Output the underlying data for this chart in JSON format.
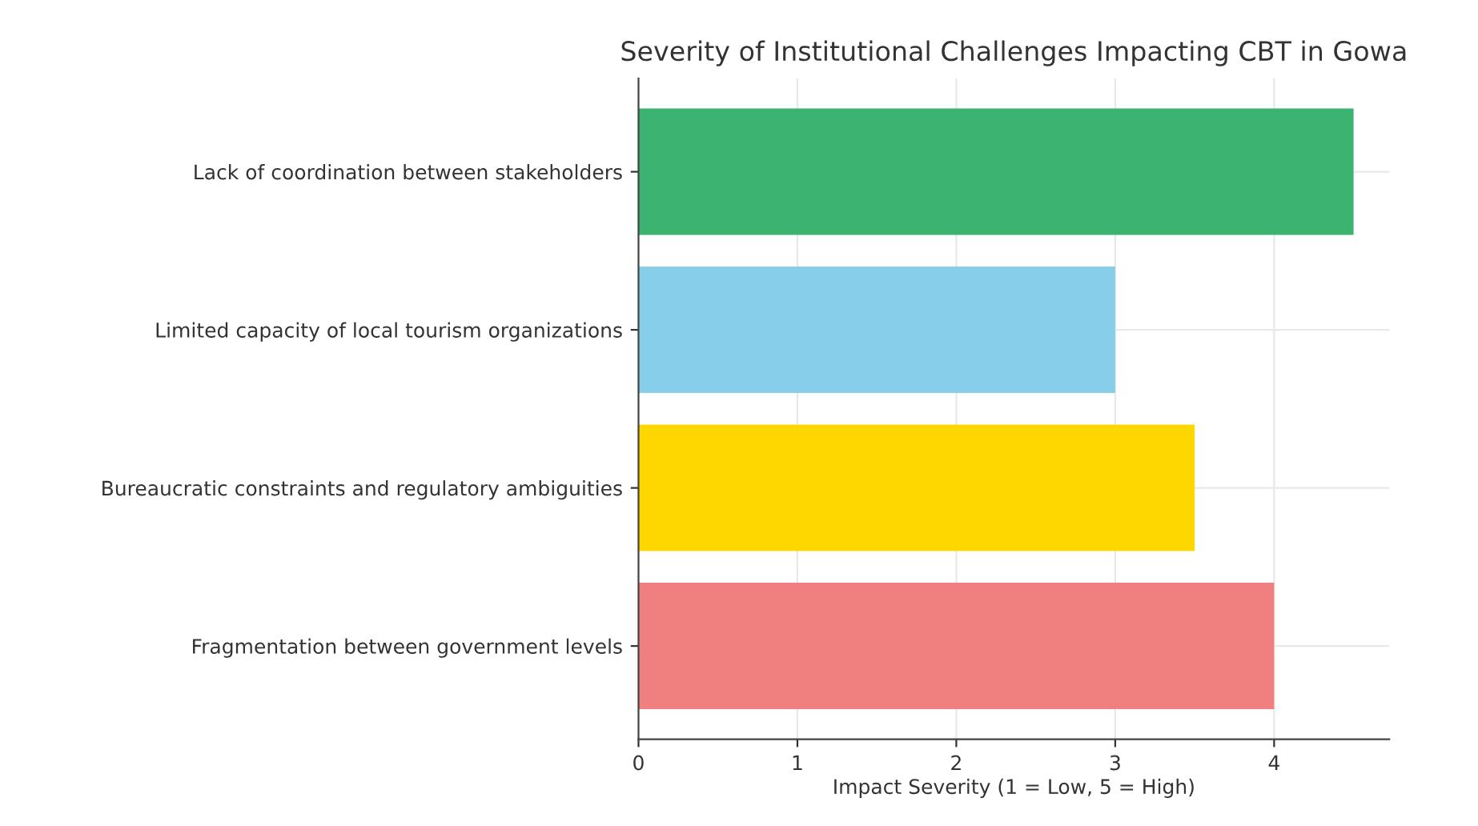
{
  "chart_data": {
    "type": "bar",
    "orientation": "horizontal",
    "title": "Severity of Institutional Challenges Impacting CBT in Gowa",
    "xlabel": "Impact Severity (1 = Low, 5 = High)",
    "categories": [
      "Lack of coordination between stakeholders",
      "Limited capacity of local tourism organizations",
      "Bureaucratic constraints and regulatory ambiguities",
      "Fragmentation between government levels"
    ],
    "values": [
      4.5,
      3.0,
      3.5,
      4.0
    ],
    "colors": [
      "#3cb371",
      "#87ceeb",
      "#ffd700",
      "#f08080"
    ],
    "xlim": [
      0,
      4.725
    ],
    "xticks": [
      0,
      1,
      2,
      3,
      4
    ],
    "grid": true
  }
}
